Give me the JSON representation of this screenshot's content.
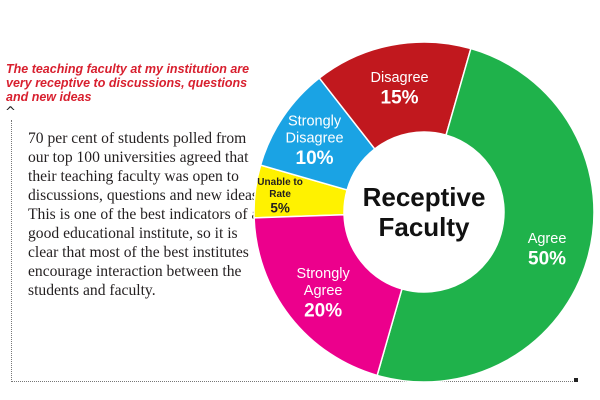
{
  "question": "The teaching faculty at my institution are very receptive to discussions, questions and new ideas",
  "caret_symbol": "^",
  "body_text": "70 per cent of students polled from our top 100 universities agreed that their teaching faculty was open to discussions, questions and new ideas. This is one of the best indicators of a good educational institute, so it is clear that most of the best institutes encourage interaction between the students and faculty.",
  "chart_data": {
    "type": "pie",
    "variant": "donut",
    "title_lines": [
      "Receptive",
      "Faculty"
    ],
    "slices": [
      {
        "label_lines": [
          "Unable to",
          "Rate"
        ],
        "value": 5,
        "value_label": "5%",
        "color": "#fff200",
        "text_color": "#231f20"
      },
      {
        "label_lines": [
          "Strongly",
          "Disagree"
        ],
        "value": 10,
        "value_label": "10%",
        "color": "#1aa3e4",
        "text_color": "#ffffff"
      },
      {
        "label_lines": [
          "Disagree"
        ],
        "value": 15,
        "value_label": "15%",
        "color": "#c1181e",
        "text_color": "#ffffff"
      },
      {
        "label_lines": [
          "Agree"
        ],
        "value": 50,
        "value_label": "50%",
        "color": "#1fb24b",
        "text_color": "#ffffff"
      },
      {
        "label_lines": [
          "Strongly",
          "Agree"
        ],
        "value": 20,
        "value_label": "20%",
        "color": "#ec008c",
        "text_color": "#ffffff"
      }
    ]
  }
}
